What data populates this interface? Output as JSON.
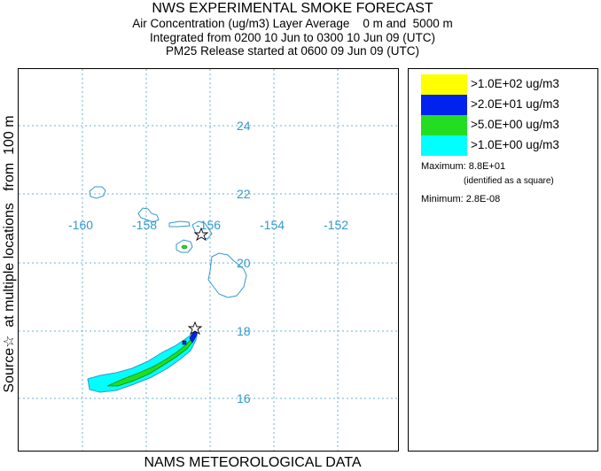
{
  "header": {
    "title": "NWS EXPERIMENTAL SMOKE FORECAST",
    "line1": "Air Concentration (ug/m3) Layer Average    0 m and  5000 m",
    "line2": "Integrated from 0200 10 Jun to 0300 10 Jun 09 (UTC)",
    "line3": "PM25 Release started at 0600 09 Jun 09 (UTC)"
  },
  "side_label": "Source☆  at multiple locations   from  100 m",
  "footer": "NAMS METEOROLOGICAL DATA",
  "map": {
    "longitude_labels": [
      "-160",
      "-158",
      "-156",
      "-154",
      "-152"
    ],
    "latitude_labels": [
      "24",
      "22",
      "20",
      "18",
      "16"
    ],
    "grid_color": "#6ab0d8",
    "label_color": "#3399cc",
    "coast_color": "#3399cc"
  },
  "legend": {
    "entries": [
      {
        "label": ">1.0E+02 ug/m3",
        "color": "#ffff00"
      },
      {
        "label": ">2.0E+01 ug/m3",
        "color": "#0022ee"
      },
      {
        "label": ">5.0E+00 ug/m3",
        "color": "#22dd22"
      },
      {
        "label": ">1.0E+00 ug/m3",
        "color": "#00ffff"
      }
    ],
    "maximum": "Maximum: 8.8E+01",
    "maximum_note": "(identified as a square)",
    "minimum": "Minimum: 2.8E-08"
  }
}
